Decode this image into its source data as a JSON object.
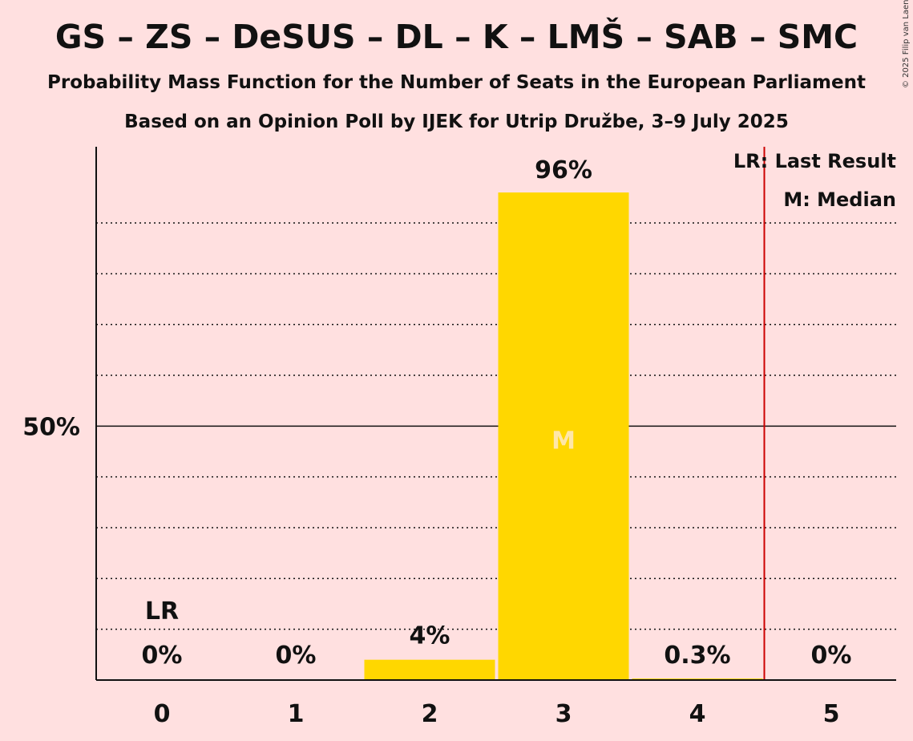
{
  "header": {
    "title": "GS – ZS – DeSUS – DL – K – LMŠ – SAB – SMC",
    "subtitle": "Probability Mass Function for the Number of Seats in the European Parliament",
    "subtitle2": "Based on an Opinion Poll by IJEK for Utrip Družbe, 3–9 July 2025",
    "copyright": "© 2025 Filip van Laenen"
  },
  "legend": {
    "last_result": "LR: Last Result",
    "median": "M: Median"
  },
  "colors": {
    "background": "#FFE0E0",
    "bar": "#FFD700",
    "last_result_line": "#CC0000",
    "median_text": "#FFE7A8"
  },
  "chart_data": {
    "type": "bar",
    "categories": [
      "0",
      "1",
      "2",
      "3",
      "4",
      "5"
    ],
    "values": [
      0,
      0,
      4,
      96,
      0.3,
      0
    ],
    "value_labels": [
      "0%",
      "0%",
      "4%",
      "96%",
      "0.3%",
      "0%"
    ],
    "ylim": [
      0,
      105
    ],
    "y_tick_label": "50%",
    "y_tick_value": 50,
    "gridlines": [
      10,
      20,
      30,
      40,
      60,
      70,
      80,
      90
    ],
    "last_result": {
      "seat": 0,
      "label": "LR",
      "line_between": [
        4,
        5
      ]
    },
    "median": {
      "seat": 3,
      "label": "M"
    }
  }
}
